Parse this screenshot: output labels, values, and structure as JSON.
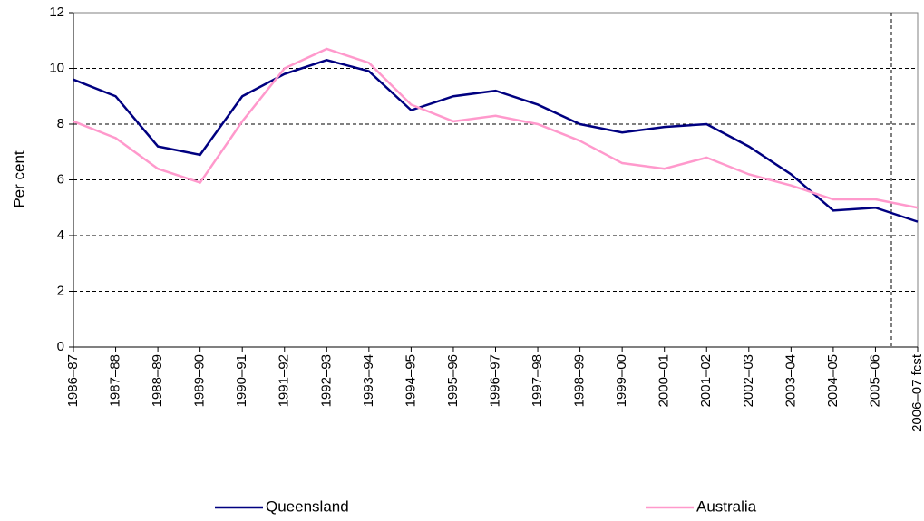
{
  "chart_data": {
    "type": "line",
    "y_label": "Per cent",
    "categories": [
      "1986–87",
      "1987–88",
      "1988–89",
      "1989–90",
      "1990–91",
      "1991–92",
      "1992–93",
      "1993–94",
      "1994–95",
      "1995–96",
      "1996–97",
      "1997–98",
      "1998–99",
      "1999–00",
      "2000–01",
      "2001–02",
      "2002–03",
      "2003–04",
      "2004–05",
      "2005–06",
      "2006–07 fcst"
    ],
    "series": [
      {
        "name": "Queensland",
        "color": "#000080",
        "values": [
          9.6,
          9.0,
          7.2,
          6.9,
          9.0,
          9.8,
          10.3,
          9.9,
          8.5,
          9.0,
          9.2,
          8.7,
          8.0,
          7.7,
          7.9,
          8.0,
          7.2,
          6.2,
          4.9,
          5.0,
          4.5
        ]
      },
      {
        "name": "Australia",
        "color": "#ff99cc",
        "values": [
          8.1,
          7.5,
          6.4,
          5.9,
          8.1,
          10.0,
          10.7,
          10.2,
          8.7,
          8.1,
          8.3,
          8.0,
          7.4,
          6.6,
          6.4,
          6.8,
          6.2,
          5.8,
          5.3,
          5.3,
          5.0
        ]
      }
    ],
    "ylim": [
      0,
      12
    ],
    "yticks": [
      0,
      2,
      4,
      6,
      8,
      10,
      12
    ],
    "grid": true,
    "legend": "bottom"
  }
}
